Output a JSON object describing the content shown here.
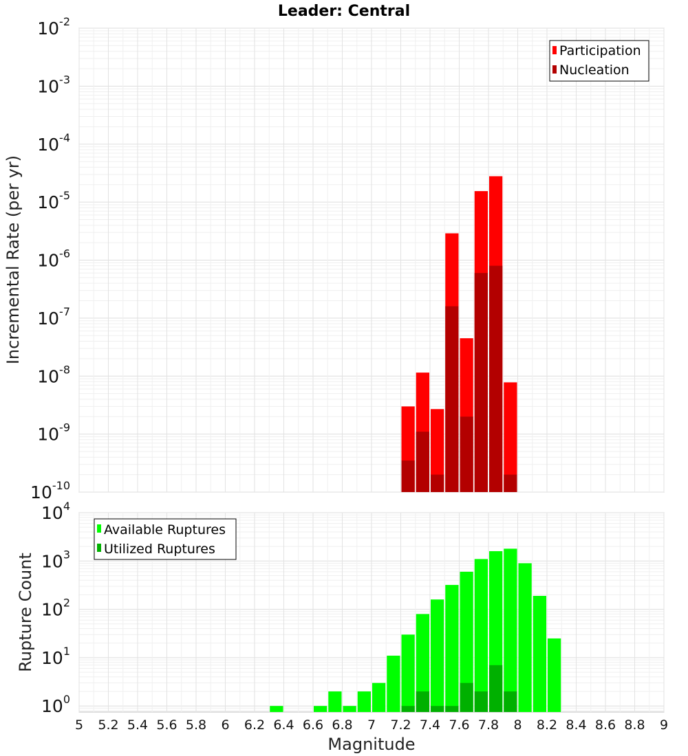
{
  "title": "Leader: Central",
  "xlabel": "Magnitude",
  "chart_data": [
    {
      "type": "bar",
      "title": "Leader: Central",
      "xlabel": "",
      "ylabel": "Incremental Rate (per yr)",
      "yscale": "log",
      "ylim": [
        1e-10,
        0.01
      ],
      "xlim": [
        5,
        9
      ],
      "bar_width": 0.1,
      "grid": true,
      "legend_position": "top-right",
      "series": [
        {
          "name": "Participation",
          "color": "#ff0000",
          "x": [
            7.25,
            7.35,
            7.45,
            7.55,
            7.65,
            7.75,
            7.85,
            7.95
          ],
          "values": [
            3e-09,
            1.15e-08,
            2.7e-09,
            2.9e-06,
            4.5e-08,
            1.55e-05,
            2.8e-05,
            7.8e-09
          ]
        },
        {
          "name": "Nucleation",
          "color": "#b30000",
          "x": [
            7.25,
            7.35,
            7.45,
            7.55,
            7.65,
            7.75,
            7.85,
            7.95
          ],
          "values": [
            3.5e-10,
            1.1e-09,
            2e-10,
            1.6e-07,
            2e-09,
            6e-07,
            8e-07,
            2e-10
          ]
        }
      ]
    },
    {
      "type": "bar",
      "title": "",
      "xlabel": "Magnitude",
      "ylabel": "Rupture Count",
      "yscale": "log",
      "ylim": [
        0.75,
        10000
      ],
      "xlim": [
        5,
        9
      ],
      "bar_width": 0.1,
      "grid": true,
      "legend_position": "top-left",
      "series": [
        {
          "name": "Available Ruptures",
          "color": "#00ff00",
          "x": [
            6.35,
            6.65,
            6.75,
            6.85,
            6.95,
            7.05,
            7.15,
            7.25,
            7.35,
            7.45,
            7.55,
            7.65,
            7.75,
            7.85,
            7.95,
            8.05,
            8.15,
            8.25
          ],
          "values": [
            1,
            1,
            2,
            1,
            2,
            3,
            11,
            30,
            80,
            160,
            320,
            600,
            1100,
            1600,
            1800,
            900,
            190,
            25
          ]
        },
        {
          "name": "Utilized Ruptures",
          "color": "#00b000",
          "x": [
            7.25,
            7.35,
            7.45,
            7.55,
            7.65,
            7.75,
            7.85,
            7.95
          ],
          "values": [
            1,
            2,
            1,
            1,
            3,
            2,
            7,
            2
          ]
        }
      ]
    }
  ],
  "x_tick_labels": [
    "5",
    "5.2",
    "5.4",
    "5.6",
    "5.8",
    "6",
    "6.2",
    "6.4",
    "6.6",
    "6.8",
    "7",
    "7.2",
    "7.4",
    "7.6",
    "7.8",
    "8",
    "8.2",
    "8.4",
    "8.6",
    "8.8",
    "9"
  ],
  "top_y_ticks": [
    {
      "exp": -10,
      "base": "10",
      "sup": "-10"
    },
    {
      "exp": -9,
      "base": "10",
      "sup": "-9"
    },
    {
      "exp": -8,
      "base": "10",
      "sup": "-8"
    },
    {
      "exp": -7,
      "base": "10",
      "sup": "-7"
    },
    {
      "exp": -6,
      "base": "10",
      "sup": "-6"
    },
    {
      "exp": -5,
      "base": "10",
      "sup": "-5"
    },
    {
      "exp": -4,
      "base": "10",
      "sup": "-4"
    },
    {
      "exp": -3,
      "base": "10",
      "sup": "-3"
    },
    {
      "exp": -2,
      "base": "10",
      "sup": "-2"
    }
  ],
  "bottom_y_ticks": [
    {
      "exp": 0,
      "base": "10",
      "sup": "0"
    },
    {
      "exp": 1,
      "base": "10",
      "sup": "1"
    },
    {
      "exp": 2,
      "base": "10",
      "sup": "2"
    },
    {
      "exp": 3,
      "base": "10",
      "sup": "3"
    },
    {
      "exp": 4,
      "base": "10",
      "sup": "4"
    }
  ]
}
